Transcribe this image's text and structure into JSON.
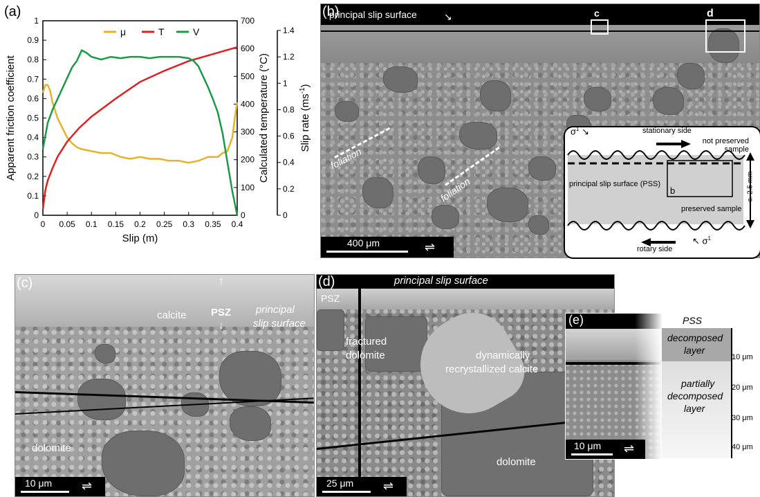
{
  "labels": {
    "a": "(a)",
    "b": "(b)",
    "c": "(c)",
    "d": "(d)",
    "e": "(e)"
  },
  "chart_data": {
    "type": "line",
    "xlabel": "Slip (m)",
    "ylabel_left": "Apparent friction coefficient",
    "ylabel_right1": "Calculated temperature (°C)",
    "ylabel_right2": "Slip rate (ms",
    "ylabel_right2_sup": "-1",
    "ylabel_right2_close": ")",
    "xlim": [
      0,
      0.4
    ],
    "ylim": [
      0,
      1
    ],
    "y2lim": [
      0,
      700
    ],
    "y3lim": [
      0,
      1.4
    ],
    "x_ticks": [
      "0",
      "0.05",
      "0.1",
      "0.15",
      "0.2",
      "0.25",
      "0.3",
      "0.35",
      "0.4"
    ],
    "y_ticks": [
      "0",
      "0.1",
      "0.2",
      "0.3",
      "0.4",
      "0.5",
      "0.6",
      "0.7",
      "0.8",
      "0.9",
      "1"
    ],
    "y2_ticks": [
      "0",
      "100",
      "200",
      "300",
      "400",
      "500",
      "600",
      "700"
    ],
    "y3_ticks": [
      "0",
      "0.2",
      "0.4",
      "0.6",
      "0.8",
      "1",
      "1.2",
      "1.4"
    ],
    "legend": [
      "μ",
      "T",
      "V"
    ],
    "colors": {
      "mu": "#e8b12a",
      "T": "#e02020",
      "V": "#1a9a48"
    },
    "series": [
      {
        "name": "μ",
        "axis": "left",
        "x": [
          0,
          0.005,
          0.01,
          0.015,
          0.02,
          0.03,
          0.04,
          0.05,
          0.06,
          0.07,
          0.08,
          0.1,
          0.12,
          0.14,
          0.16,
          0.18,
          0.2,
          0.22,
          0.24,
          0.26,
          0.28,
          0.3,
          0.32,
          0.34,
          0.36,
          0.37,
          0.38,
          0.39,
          0.395,
          0.4
        ],
        "y": [
          0.63,
          0.67,
          0.67,
          0.64,
          0.58,
          0.5,
          0.45,
          0.4,
          0.37,
          0.35,
          0.34,
          0.33,
          0.32,
          0.32,
          0.3,
          0.29,
          0.3,
          0.29,
          0.29,
          0.28,
          0.28,
          0.27,
          0.28,
          0.3,
          0.3,
          0.32,
          0.33,
          0.4,
          0.5,
          0.58
        ]
      },
      {
        "name": "T",
        "axis": "right1",
        "x": [
          0,
          0.005,
          0.01,
          0.02,
          0.03,
          0.05,
          0.075,
          0.1,
          0.15,
          0.2,
          0.25,
          0.3,
          0.35,
          0.4
        ],
        "y": [
          20,
          90,
          125,
          170,
          210,
          265,
          315,
          355,
          420,
          480,
          520,
          555,
          580,
          605
        ]
      },
      {
        "name": "V",
        "axis": "right2",
        "x": [
          0,
          0.01,
          0.02,
          0.03,
          0.04,
          0.05,
          0.06,
          0.07,
          0.08,
          0.09,
          0.1,
          0.12,
          0.14,
          0.16,
          0.18,
          0.2,
          0.22,
          0.24,
          0.26,
          0.28,
          0.3,
          0.31,
          0.32,
          0.33,
          0.34,
          0.35,
          0.36,
          0.37,
          0.38,
          0.39,
          0.4
        ],
        "y": [
          0.5,
          0.7,
          0.8,
          0.88,
          0.96,
          1.04,
          1.12,
          1.17,
          1.25,
          1.23,
          1.2,
          1.18,
          1.2,
          1.19,
          1.2,
          1.2,
          1.19,
          1.2,
          1.2,
          1.2,
          1.19,
          1.17,
          1.13,
          1.05,
          0.97,
          0.88,
          0.78,
          0.62,
          0.4,
          0.18,
          0.0
        ]
      }
    ]
  },
  "panel_b": {
    "pss_label": "principal slip surface",
    "box_c": "c",
    "box_d": "d",
    "foliation1": "foliation",
    "foliation2": "foliation",
    "scale": "400 μm",
    "inset": {
      "sigma_top": "σ",
      "sigma_top_sup": "1",
      "stationary": "stationary side",
      "not_preserved": "not preserved sample",
      "pss": "principal slip surface (PSS)",
      "b": "b",
      "preserved": "preserved sample",
      "thickness": "c. 2.5 mm",
      "rotary": "rotary side",
      "sigma_bot": "σ",
      "sigma_bot_sup": "1"
    }
  },
  "panel_c": {
    "calcite": "calcite",
    "psz": "PSZ",
    "principal": "principal",
    "slip_surface": "slip surface",
    "dolomite": "dolomite",
    "scale": "10 μm"
  },
  "panel_d": {
    "pss": "principal slip surface",
    "psz": "PSZ",
    "fractured": "fractured",
    "dolomite1": "dolomite",
    "dynamically": "dynamically",
    "recryst": "recrystallized calcite",
    "dolomite2": "dolomite",
    "scale": "25 μm"
  },
  "panel_e": {
    "pss": "PSS",
    "decomposed1": "decomposed",
    "decomposed2": "layer",
    "partially1": "partially",
    "partially2": "decomposed",
    "partially3": "layer",
    "ticks": [
      "10 μm",
      "20 μm",
      "30 μm",
      "40 μm"
    ],
    "scale": "10 μm"
  }
}
